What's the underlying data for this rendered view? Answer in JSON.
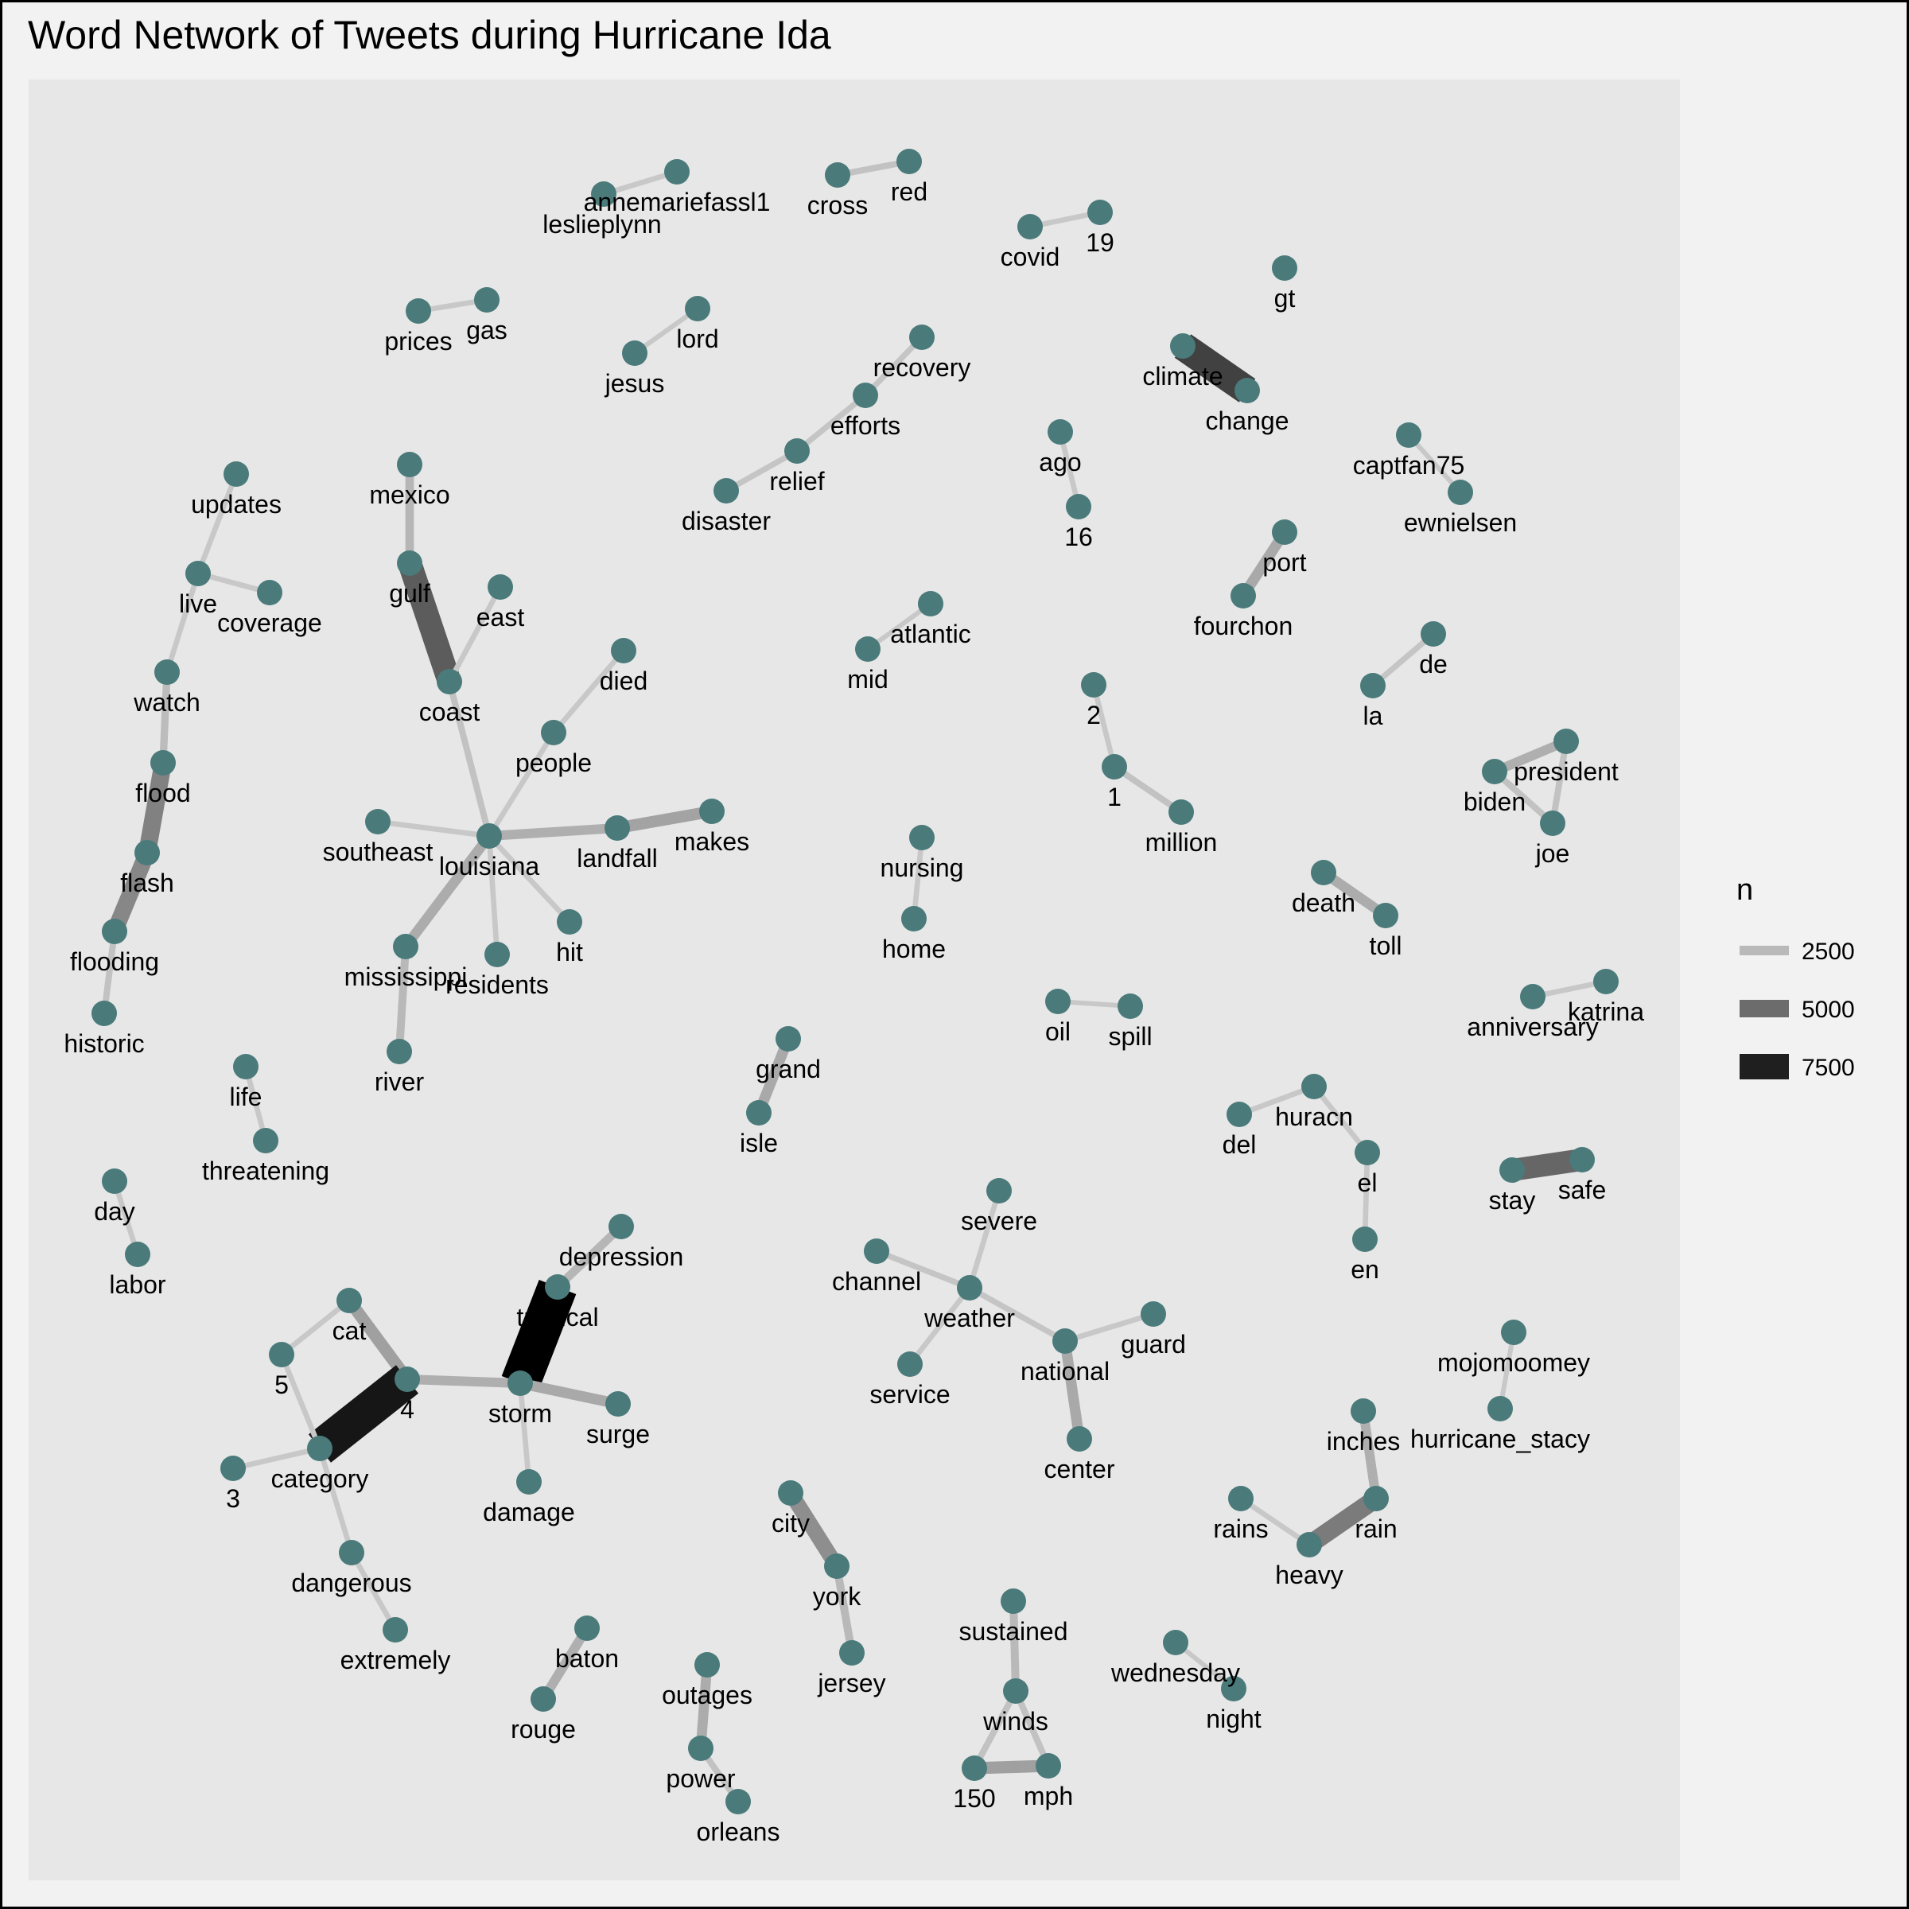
{
  "title": "Word Network of Tweets during Hurricane Ida",
  "colors": {
    "node": "#4a7a7a",
    "panel": "#e7e7e7",
    "background": "#f2f2f2",
    "edge_light": "#bcbcbc",
    "edge_dark": "#000000"
  },
  "legend": {
    "title": "n",
    "placement": "right",
    "entries": [
      {
        "label": "2500",
        "value": 2500
      },
      {
        "label": "5000",
        "value": 5000
      },
      {
        "label": "7500",
        "value": 7500
      }
    ]
  },
  "nodes": [
    "annemariefassl1",
    "leslieplynn",
    "cross",
    "red",
    "covid",
    "19",
    "gt",
    "prices",
    "gas",
    "lord",
    "jesus",
    "recovery",
    "efforts",
    "relief",
    "disaster",
    "climate",
    "change",
    "ago",
    "16",
    "captfan75",
    "ewnielsen",
    "updates",
    "live",
    "coverage",
    "watch",
    "flood",
    "flash",
    "flooding",
    "historic",
    "mexico",
    "gulf",
    "east",
    "coast",
    "died",
    "people",
    "southeast",
    "louisiana",
    "landfall",
    "makes",
    "hit",
    "residents",
    "mississippi",
    "river",
    "port",
    "fourchon",
    "de",
    "la",
    "atlantic",
    "mid",
    "2",
    "1",
    "million",
    "president",
    "biden",
    "joe",
    "nursing",
    "home",
    "death",
    "toll",
    "anniversary",
    "katrina",
    "oil",
    "spill",
    "life",
    "threatening",
    "grand",
    "isle",
    "huracn",
    "del",
    "el",
    "en",
    "stay",
    "safe",
    "day",
    "labor",
    "depression",
    "tropical",
    "cat",
    "5",
    "4",
    "storm",
    "surge",
    "category",
    "3",
    "damage",
    "dangerous",
    "extremely",
    "severe",
    "channel",
    "weather",
    "guard",
    "national",
    "service",
    "center",
    "mojomoomey",
    "hurricane_stacy",
    "inches",
    "rain",
    "rains",
    "heavy",
    "city",
    "york",
    "jersey",
    "baton",
    "rouge",
    "outages",
    "power",
    "orleans",
    "sustained",
    "winds",
    "150",
    "mph",
    "wednesday",
    "night"
  ],
  "edges": [
    {
      "from": "leslieplynn",
      "to": "annemariefassl1",
      "n": 2000
    },
    {
      "from": "cross",
      "to": "red",
      "n": 2200
    },
    {
      "from": "covid",
      "to": "19",
      "n": 2000
    },
    {
      "from": "prices",
      "to": "gas",
      "n": 2000
    },
    {
      "from": "jesus",
      "to": "lord",
      "n": 1900
    },
    {
      "from": "disaster",
      "to": "relief",
      "n": 2100
    },
    {
      "from": "relief",
      "to": "efforts",
      "n": 2100
    },
    {
      "from": "efforts",
      "to": "recovery",
      "n": 2100
    },
    {
      "from": "climate",
      "to": "change",
      "n": 6400
    },
    {
      "from": "ago",
      "to": "16",
      "n": 2000
    },
    {
      "from": "captfan75",
      "to": "ewnielsen",
      "n": 1900
    },
    {
      "from": "live",
      "to": "updates",
      "n": 2000
    },
    {
      "from": "live",
      "to": "coverage",
      "n": 2000
    },
    {
      "from": "watch",
      "to": "live",
      "n": 2000
    },
    {
      "from": "flood",
      "to": "watch",
      "n": 2400
    },
    {
      "from": "flash",
      "to": "flood",
      "n": 4300
    },
    {
      "from": "flash",
      "to": "flooding",
      "n": 4100
    },
    {
      "from": "flooding",
      "to": "historic",
      "n": 2200
    },
    {
      "from": "mexico",
      "to": "gulf",
      "n": 2600
    },
    {
      "from": "gulf",
      "to": "coast",
      "n": 5500
    },
    {
      "from": "coast",
      "to": "east",
      "n": 2000
    },
    {
      "from": "louisiana",
      "to": "coast",
      "n": 2200
    },
    {
      "from": "people",
      "to": "died",
      "n": 2000
    },
    {
      "from": "louisiana",
      "to": "people",
      "n": 2000
    },
    {
      "from": "southeast",
      "to": "louisiana",
      "n": 2000
    },
    {
      "from": "louisiana",
      "to": "landfall",
      "n": 2800
    },
    {
      "from": "landfall",
      "to": "makes",
      "n": 3200
    },
    {
      "from": "louisiana",
      "to": "hit",
      "n": 2000
    },
    {
      "from": "louisiana",
      "to": "residents",
      "n": 2000
    },
    {
      "from": "mississippi",
      "to": "louisiana",
      "n": 2900
    },
    {
      "from": "mississippi",
      "to": "river",
      "n": 2500
    },
    {
      "from": "port",
      "to": "fourchon",
      "n": 3000
    },
    {
      "from": "la",
      "to": "de",
      "n": 2100
    },
    {
      "from": "mid",
      "to": "atlantic",
      "n": 1900
    },
    {
      "from": "2",
      "to": "1",
      "n": 2000
    },
    {
      "from": "1",
      "to": "million",
      "n": 2200
    },
    {
      "from": "biden",
      "to": "president",
      "n": 2800
    },
    {
      "from": "joe",
      "to": "biden",
      "n": 2200
    },
    {
      "from": "president",
      "to": "joe",
      "n": 2200
    },
    {
      "from": "nursing",
      "to": "home",
      "n": 2000
    },
    {
      "from": "death",
      "to": "toll",
      "n": 2900
    },
    {
      "from": "anniversary",
      "to": "katrina",
      "n": 2000
    },
    {
      "from": "oil",
      "to": "spill",
      "n": 1900
    },
    {
      "from": "life",
      "to": "threatening",
      "n": 2000
    },
    {
      "from": "grand",
      "to": "isle",
      "n": 3000
    },
    {
      "from": "del",
      "to": "huracn",
      "n": 2000
    },
    {
      "from": "huracn",
      "to": "el",
      "n": 2000
    },
    {
      "from": "el",
      "to": "en",
      "n": 2000
    },
    {
      "from": "stay",
      "to": "safe",
      "n": 5200
    },
    {
      "from": "day",
      "to": "labor",
      "n": 2000
    },
    {
      "from": "tropical",
      "to": "depression",
      "n": 2600
    },
    {
      "from": "tropical",
      "to": "storm",
      "n": 8500
    },
    {
      "from": "5",
      "to": "cat",
      "n": 2000
    },
    {
      "from": "cat",
      "to": "4",
      "n": 3300
    },
    {
      "from": "4",
      "to": "storm",
      "n": 2800
    },
    {
      "from": "category",
      "to": "4",
      "n": 7800
    },
    {
      "from": "category",
      "to": "5",
      "n": 2000
    },
    {
      "from": "3",
      "to": "category",
      "n": 2000
    },
    {
      "from": "storm",
      "to": "surge",
      "n": 3000
    },
    {
      "from": "storm",
      "to": "damage",
      "n": 2000
    },
    {
      "from": "category",
      "to": "dangerous",
      "n": 2000
    },
    {
      "from": "dangerous",
      "to": "extremely",
      "n": 2000
    },
    {
      "from": "severe",
      "to": "weather",
      "n": 2000
    },
    {
      "from": "channel",
      "to": "weather",
      "n": 2100
    },
    {
      "from": "weather",
      "to": "service",
      "n": 2000
    },
    {
      "from": "weather",
      "to": "national",
      "n": 2100
    },
    {
      "from": "national",
      "to": "guard",
      "n": 2000
    },
    {
      "from": "national",
      "to": "center",
      "n": 3000
    },
    {
      "from": "mojomoomey",
      "to": "hurricane_stacy",
      "n": 1900
    },
    {
      "from": "inches",
      "to": "rain",
      "n": 2800
    },
    {
      "from": "heavy",
      "to": "rain",
      "n": 4500
    },
    {
      "from": "rains",
      "to": "heavy",
      "n": 2000
    },
    {
      "from": "city",
      "to": "york",
      "n": 3900
    },
    {
      "from": "york",
      "to": "jersey",
      "n": 2500
    },
    {
      "from": "baton",
      "to": "rouge",
      "n": 2800
    },
    {
      "from": "outages",
      "to": "power",
      "n": 2900
    },
    {
      "from": "power",
      "to": "orleans",
      "n": 2200
    },
    {
      "from": "sustained",
      "to": "winds",
      "n": 2500
    },
    {
      "from": "winds",
      "to": "150",
      "n": 2200
    },
    {
      "from": "winds",
      "to": "mph",
      "n": 2200
    },
    {
      "from": "150",
      "to": "mph",
      "n": 3300
    },
    {
      "from": "wednesday",
      "to": "night",
      "n": 1900
    }
  ]
}
